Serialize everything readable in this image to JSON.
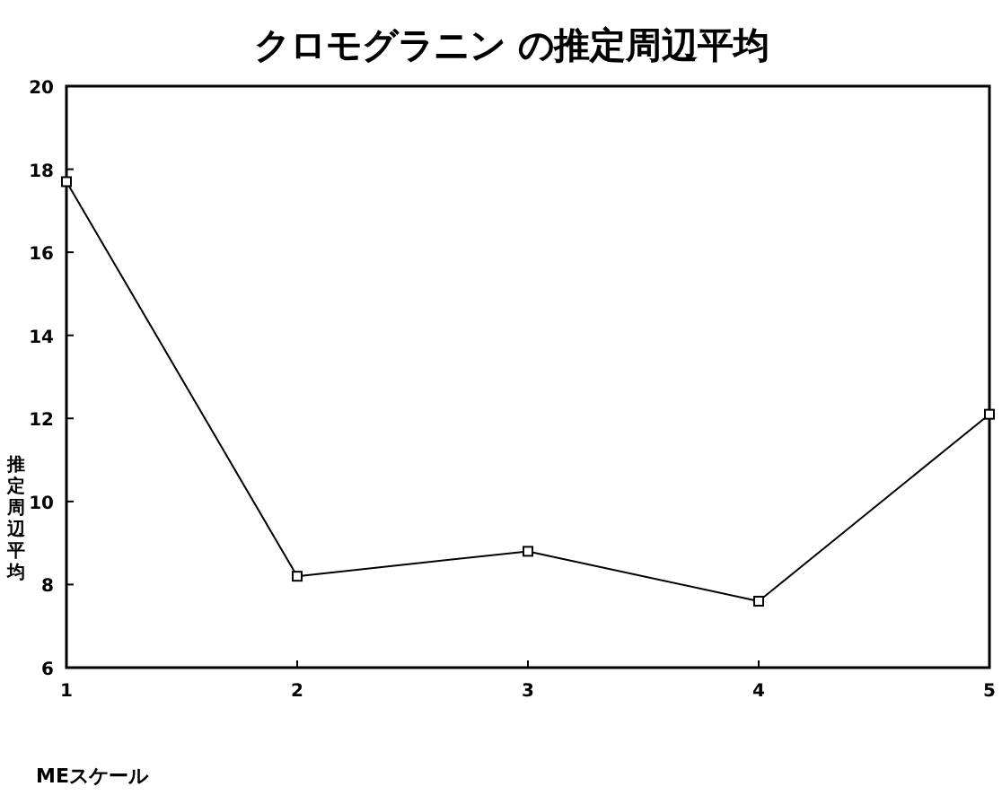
{
  "chart_data": {
    "type": "line",
    "title": "クロモグラニン の推定周辺平均",
    "xlabel": "MEスケール",
    "ylabel": "推定周辺平均",
    "x": [
      1,
      2,
      3,
      4,
      5
    ],
    "series": [
      {
        "color": "#000000",
        "values": [
          17.7,
          8.2,
          8.8,
          7.6,
          12.1
        ]
      }
    ],
    "xlim": [
      1,
      5
    ],
    "xticks": [
      1,
      2,
      3,
      4,
      5
    ],
    "ylim": [
      6,
      20
    ],
    "yticks": [
      6,
      8,
      10,
      12,
      14,
      16,
      18,
      20
    ],
    "grid": false,
    "marker": "square",
    "line_style": "solid"
  }
}
